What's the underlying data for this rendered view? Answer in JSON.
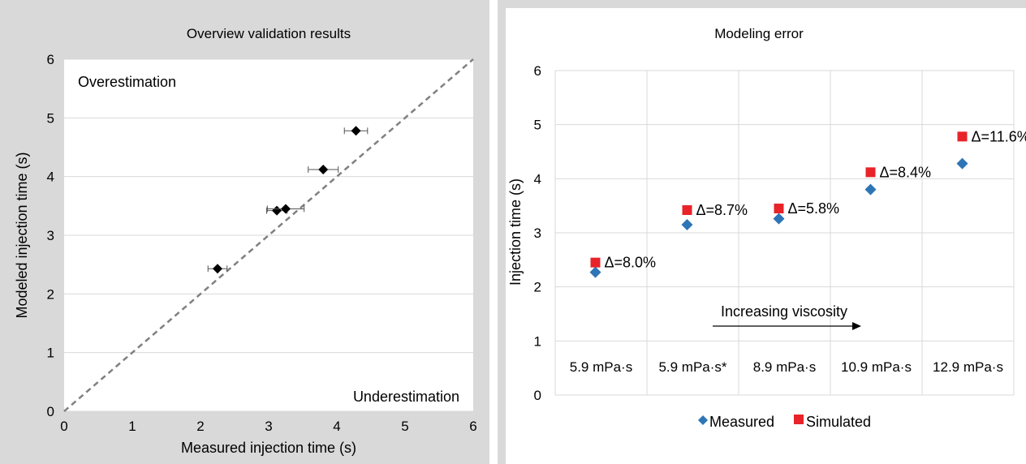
{
  "chart_data": [
    {
      "type": "scatter",
      "title": "Overview validation results",
      "xlabel": "Measured injection time (s)",
      "ylabel": "Modeled injection time (s)",
      "xlim": [
        0,
        6
      ],
      "ylim": [
        0,
        6
      ],
      "x_ticks": [
        "0",
        "1",
        "2",
        "3",
        "4",
        "5",
        "6"
      ],
      "y_ticks": [
        "0",
        "1",
        "2",
        "3",
        "4",
        "5",
        "6"
      ],
      "grid": "horizontal",
      "points": [
        {
          "x": 2.25,
          "y": 2.43,
          "xerr": 0.14
        },
        {
          "x": 3.12,
          "y": 3.42,
          "xerr": 0.15
        },
        {
          "x": 3.25,
          "y": 3.45,
          "xerr": 0.27
        },
        {
          "x": 3.8,
          "y": 4.12,
          "xerr": 0.22
        },
        {
          "x": 4.28,
          "y": 4.78,
          "xerr": 0.17
        }
      ],
      "identity_line": {
        "from": [
          0,
          0
        ],
        "to": [
          6,
          6
        ],
        "color": "#808080",
        "dashed": true
      },
      "annotations": [
        "Overestimation",
        "Underestimation"
      ],
      "marker_color": "#000000"
    },
    {
      "type": "scatter",
      "title": "Modeling error",
      "xlabel": "",
      "ylabel": "Injection time (s)",
      "ylim": [
        0,
        6
      ],
      "y_ticks": [
        "0",
        "1",
        "2",
        "3",
        "4",
        "5",
        "6"
      ],
      "grid": "both",
      "categories": [
        "5.9 mPa·s",
        "5.9 mPa·s*",
        "8.9 mPa·s",
        "10.9 mPa·s",
        "12.9 mPa·s"
      ],
      "series": [
        {
          "name": "Measured",
          "values": [
            2.27,
            3.15,
            3.26,
            3.8,
            4.28
          ],
          "color": "#2e75b6",
          "marker": "diamond"
        },
        {
          "name": "Simulated",
          "values": [
            2.45,
            3.42,
            3.45,
            4.12,
            4.78
          ],
          "color": "#e8232a",
          "marker": "square"
        }
      ],
      "deltas": [
        "Δ=8.0%",
        "Δ=8.7%",
        "Δ=5.8%",
        "Δ=8.4%",
        "Δ=11.6%"
      ],
      "arrow_label": "Increasing viscosity",
      "legend": "bottom"
    }
  ]
}
